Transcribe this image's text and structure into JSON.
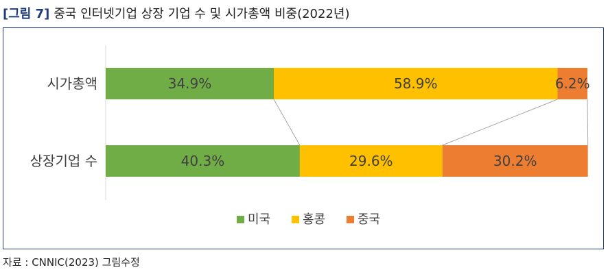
{
  "figure": {
    "label": "[그림 7]",
    "title": "중국 인터넷기업 상장 기업 수 및 시가총액 비중(2022년)"
  },
  "source": "자료 : CNNIC(2023) 그림수정",
  "chart_data": {
    "type": "bar",
    "orientation": "horizontal",
    "stacked": "100%",
    "categories": [
      "시가총액",
      "상장기업 수"
    ],
    "series": [
      {
        "name": "미국",
        "values": [
          34.9,
          40.3
        ],
        "labels": [
          "34.9%",
          "40.3%"
        ],
        "color": "#70ad47"
      },
      {
        "name": "홍콩",
        "values": [
          58.9,
          29.6
        ],
        "labels": [
          "58.9%",
          "29.6%"
        ],
        "color": "#ffc000"
      },
      {
        "name": "중국",
        "values": [
          6.2,
          30.2
        ],
        "labels": [
          "6.2%",
          "30.2%"
        ],
        "color": "#ed7d31"
      }
    ],
    "legend_position": "bottom",
    "series_lines": true
  }
}
